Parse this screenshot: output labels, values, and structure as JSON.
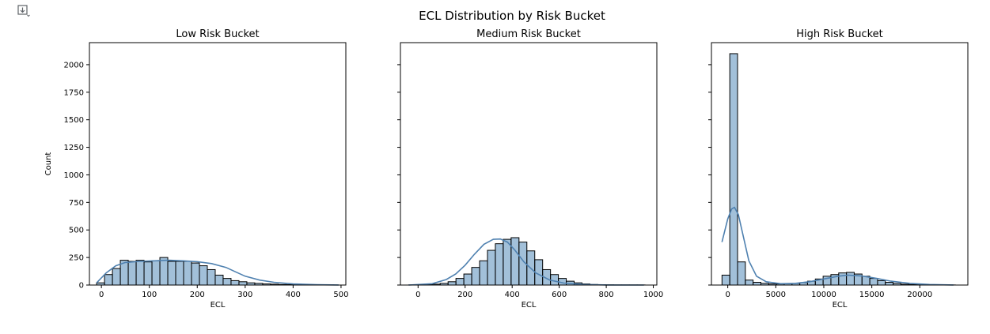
{
  "figure": {
    "suptitle": "ECL Distribution by Risk Bucket"
  },
  "cell_output_icon": "expand-output-icon",
  "chart_data": [
    {
      "type": "bar",
      "title": "Low Risk Bucket",
      "xlabel": "ECL",
      "ylabel": "Count",
      "xlim": [
        -25,
        510
      ],
      "ylim": [
        0,
        2200
      ],
      "xticks": [
        0,
        100,
        200,
        300,
        400,
        500
      ],
      "yticks": [
        0,
        250,
        500,
        750,
        1000,
        1250,
        1500,
        1750,
        2000
      ],
      "show_yticklabels": true,
      "bin_start": -10,
      "bin_width": 16.5,
      "values": [
        20,
        95,
        150,
        225,
        215,
        225,
        210,
        220,
        250,
        215,
        215,
        215,
        200,
        175,
        140,
        90,
        60,
        40,
        30,
        20,
        15,
        10,
        8,
        5,
        4,
        3,
        3,
        2,
        2,
        2
      ],
      "kde_x": [
        -10,
        10,
        30,
        50,
        80,
        110,
        140,
        170,
        200,
        230,
        260,
        280,
        300,
        330,
        360,
        400,
        450,
        495
      ],
      "kde_y": [
        20,
        110,
        175,
        205,
        215,
        220,
        225,
        220,
        212,
        195,
        160,
        120,
        80,
        45,
        25,
        10,
        3,
        1
      ],
      "grid": false
    },
    {
      "type": "bar",
      "title": "Medium Risk Bucket",
      "xlabel": "ECL",
      "ylabel": "",
      "xlim": [
        -75,
        1015
      ],
      "ylim": [
        0,
        2200
      ],
      "xticks": [
        0,
        200,
        400,
        600,
        800,
        1000
      ],
      "yticks": [
        0,
        250,
        500,
        750,
        1000,
        1250,
        1500,
        1750,
        2000
      ],
      "show_yticklabels": false,
      "bin_start": -40,
      "bin_width": 33.5,
      "values": [
        1,
        2,
        4,
        8,
        15,
        30,
        60,
        100,
        160,
        220,
        315,
        375,
        415,
        430,
        390,
        310,
        230,
        140,
        95,
        60,
        35,
        20,
        10,
        5,
        3,
        2,
        1,
        1,
        1,
        1
      ],
      "kde_x": [
        -40,
        60,
        120,
        160,
        200,
        240,
        280,
        320,
        350,
        380,
        410,
        450,
        500,
        560,
        620,
        700,
        800,
        960
      ],
      "kde_y": [
        0,
        12,
        50,
        100,
        180,
        280,
        370,
        415,
        418,
        390,
        320,
        210,
        110,
        45,
        18,
        5,
        1,
        0
      ],
      "grid": false
    },
    {
      "type": "bar",
      "title": "High Risk Bucket",
      "xlabel": "ECL",
      "ylabel": "",
      "xlim": [
        -1700,
        25000
      ],
      "ylim": [
        0,
        2200
      ],
      "xticks": [
        0,
        5000,
        10000,
        15000,
        20000
      ],
      "yticks": [
        0,
        250,
        500,
        750,
        1000,
        1250,
        1500,
        1750,
        2000
      ],
      "show_yticklabels": false,
      "bin_start": -600,
      "bin_width": 810,
      "values": [
        90,
        2100,
        210,
        45,
        25,
        15,
        10,
        10,
        12,
        15,
        22,
        35,
        55,
        80,
        95,
        110,
        115,
        100,
        80,
        60,
        40,
        25,
        15,
        8,
        5,
        3,
        2,
        1,
        1,
        1
      ],
      "kde_x": [
        -600,
        0,
        400,
        700,
        1100,
        1600,
        2200,
        3000,
        4000,
        5500,
        7000,
        8500,
        10000,
        11500,
        12500,
        14000,
        15500,
        17000,
        19000,
        21000,
        23500
      ],
      "kde_y": [
        390,
        600,
        690,
        705,
        640,
        450,
        220,
        80,
        30,
        12,
        15,
        30,
        55,
        80,
        90,
        82,
        60,
        35,
        15,
        5,
        1
      ],
      "grid": false
    }
  ]
}
